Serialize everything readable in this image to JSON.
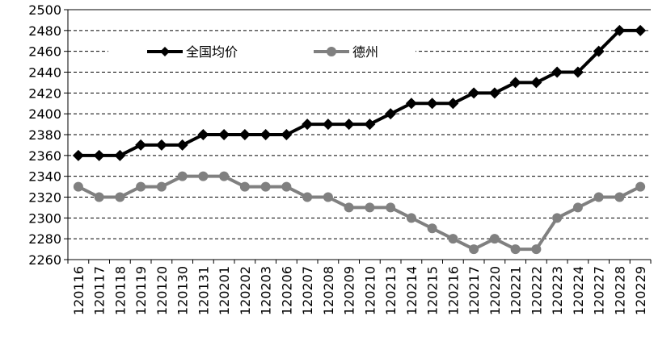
{
  "chart_data": {
    "type": "line",
    "title": "",
    "xlabel": "",
    "ylabel": "",
    "ylim": [
      2260,
      2500
    ],
    "y_ticks": [
      2260,
      2280,
      2300,
      2320,
      2340,
      2360,
      2380,
      2400,
      2420,
      2440,
      2460,
      2480,
      2500
    ],
    "grid": "horizontal dashed",
    "legend_position": "top",
    "categories": [
      "120116",
      "120117",
      "120118",
      "120119",
      "120120",
      "120130",
      "120131",
      "120201",
      "120202",
      "120203",
      "120206",
      "120207",
      "120208",
      "120209",
      "120210",
      "120213",
      "120214",
      "120215",
      "120216",
      "120217",
      "120220",
      "120221",
      "120222",
      "120223",
      "120224",
      "120227",
      "120228",
      "120229"
    ],
    "series": [
      {
        "name": "全国均价",
        "color": "#000000",
        "marker": "diamond",
        "values": [
          2360,
          2360,
          2360,
          2370,
          2370,
          2370,
          2380,
          2380,
          2380,
          2380,
          2380,
          2390,
          2390,
          2390,
          2390,
          2400,
          2410,
          2410,
          2410,
          2420,
          2420,
          2430,
          2430,
          2440,
          2440,
          2460,
          2480,
          2480
        ]
      },
      {
        "name": "德州",
        "color": "#808080",
        "marker": "circle",
        "values": [
          2330,
          2320,
          2320,
          2330,
          2330,
          2340,
          2340,
          2340,
          2330,
          2330,
          2330,
          2320,
          2320,
          2310,
          2310,
          2310,
          2300,
          2290,
          2280,
          2270,
          2280,
          2270,
          2270,
          2300,
          2310,
          2320,
          2320,
          2330
        ]
      }
    ]
  }
}
